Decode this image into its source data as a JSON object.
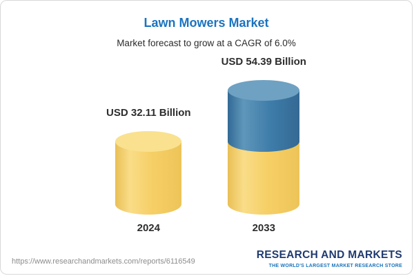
{
  "colors": {
    "title_blue": "#1a74c0",
    "bar_yellow": "#f6cf66",
    "bar_blue": "#3e7ca9",
    "logo_navy": "#203a70",
    "logo_blue": "#1b74bc"
  },
  "chart_data": {
    "type": "bar",
    "title": "Lawn Mowers Market",
    "subtitle": "Market forecast to grow at a CAGR of 6.0%",
    "cagr_pct": 6.0,
    "unit": "USD Billion",
    "categories": [
      "2024",
      "2033"
    ],
    "values": [
      32.11,
      54.39
    ],
    "value_labels": [
      "USD 32.11 Billion",
      "USD 54.39 Billion"
    ],
    "ylim": [
      0,
      60
    ],
    "legend": "none",
    "grid": "off",
    "bar_style": "3d-cylinder",
    "bar_colors": {
      "base": "#f6cf66",
      "growth_segment": "#3e7ca9"
    }
  },
  "footer": {
    "url": "https://www.researchandmarkets.com/reports/6116549",
    "logo_name": "RESEARCH AND MARKETS",
    "logo_tagline": "THE WORLD'S LARGEST MARKET RESEARCH STORE"
  }
}
